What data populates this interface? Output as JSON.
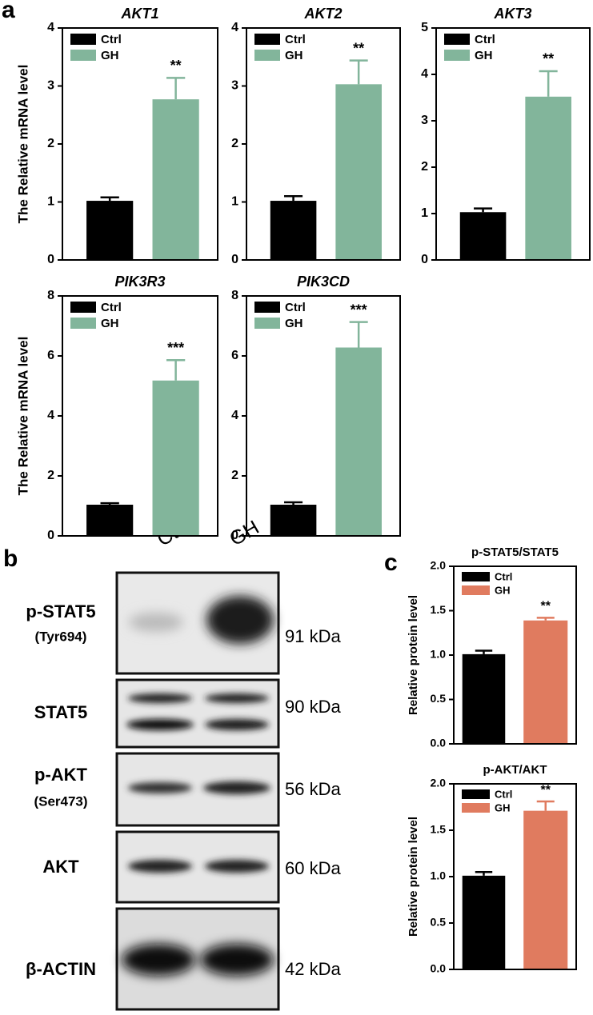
{
  "panels": [
    "a",
    "b",
    "c"
  ],
  "blot": {
    "columns": [
      "Ctrl",
      "GH"
    ],
    "rows": [
      {
        "label": "p-STAT5",
        "detail": "(Tyr694)",
        "size": "91 kDa"
      },
      {
        "label": "STAT5",
        "size": "90 kDa"
      },
      {
        "label": "p-AKT",
        "detail": "(Ser473)",
        "size": "56 kDa"
      },
      {
        "label": "AKT",
        "size": "60 kDa"
      },
      {
        "label": "β-ACTIN",
        "size": "42 kDa"
      }
    ]
  },
  "chart_data": [
    {
      "type": "bar",
      "title": "AKT1",
      "italic": true,
      "ylabel": "The Relative mRNA level",
      "series": [
        {
          "name": "Ctrl",
          "color": "#000000",
          "values": [
            1.02
          ],
          "errors": [
            0.06
          ]
        },
        {
          "name": "GH",
          "color": "#82b59b",
          "values": [
            2.77
          ],
          "errors": [
            0.37
          ],
          "significance": [
            "**"
          ]
        }
      ],
      "ylim": [
        0,
        4
      ],
      "yticks": [
        0,
        1,
        2,
        3,
        4
      ]
    },
    {
      "type": "bar",
      "title": "AKT2",
      "italic": true,
      "series": [
        {
          "name": "Ctrl",
          "color": "#000000",
          "values": [
            1.02
          ],
          "errors": [
            0.08
          ]
        },
        {
          "name": "GH",
          "color": "#82b59b",
          "values": [
            3.03
          ],
          "errors": [
            0.41
          ],
          "significance": [
            "**"
          ]
        }
      ],
      "ylim": [
        0,
        4
      ],
      "yticks": [
        0,
        1,
        2,
        3,
        4
      ]
    },
    {
      "type": "bar",
      "title": "AKT3",
      "italic": true,
      "series": [
        {
          "name": "Ctrl",
          "color": "#000000",
          "values": [
            1.03
          ],
          "errors": [
            0.08
          ]
        },
        {
          "name": "GH",
          "color": "#82b59b",
          "values": [
            3.52
          ],
          "errors": [
            0.55
          ],
          "significance": [
            "**"
          ]
        }
      ],
      "ylim": [
        0,
        5
      ],
      "yticks": [
        0,
        1,
        2,
        3,
        4,
        5
      ]
    },
    {
      "type": "bar",
      "title": "PIK3R3",
      "italic": true,
      "ylabel": "The Relative mRNA level",
      "series": [
        {
          "name": "Ctrl",
          "color": "#000000",
          "values": [
            1.04
          ],
          "errors": [
            0.05
          ]
        },
        {
          "name": "GH",
          "color": "#82b59b",
          "values": [
            5.18
          ],
          "errors": [
            0.68
          ],
          "significance": [
            "***"
          ]
        }
      ],
      "ylim": [
        0,
        8
      ],
      "yticks": [
        0,
        2,
        4,
        6,
        8
      ]
    },
    {
      "type": "bar",
      "title": "PIK3CD",
      "italic": true,
      "series": [
        {
          "name": "Ctrl",
          "color": "#000000",
          "values": [
            1.04
          ],
          "errors": [
            0.08
          ]
        },
        {
          "name": "GH",
          "color": "#82b59b",
          "values": [
            6.28
          ],
          "errors": [
            0.85
          ],
          "significance": [
            "***"
          ]
        }
      ],
      "ylim": [
        0,
        8
      ],
      "yticks": [
        0,
        2,
        4,
        6,
        8
      ]
    },
    {
      "type": "bar",
      "title": "p-STAT5/STAT5",
      "italic": false,
      "ylabel": "Relative protein level",
      "series": [
        {
          "name": "Ctrl",
          "color": "#000000",
          "values": [
            1.01
          ],
          "errors": [
            0.04
          ]
        },
        {
          "name": "GH",
          "color": "#e07b5f",
          "values": [
            1.39
          ],
          "errors": [
            0.03
          ],
          "significance": [
            "**"
          ]
        }
      ],
      "ylim": [
        0,
        2
      ],
      "yticks": [
        {
          "value": 0,
          "label": "0.0"
        },
        {
          "value": 0.5,
          "label": "0.5"
        },
        {
          "value": 1,
          "label": "1.0"
        },
        {
          "value": 1.5,
          "label": "1.5"
        },
        {
          "value": 2,
          "label": "2.0"
        }
      ]
    },
    {
      "type": "bar",
      "title": "p-AKT/AKT",
      "italic": false,
      "ylabel": "Relative protein level",
      "series": [
        {
          "name": "Ctrl",
          "color": "#000000",
          "values": [
            1.01
          ],
          "errors": [
            0.04
          ]
        },
        {
          "name": "GH",
          "color": "#e07b5f",
          "values": [
            1.71
          ],
          "errors": [
            0.1
          ],
          "significance": [
            "**"
          ]
        }
      ],
      "ylim": [
        0,
        2
      ],
      "yticks": [
        {
          "value": 0,
          "label": "0.0"
        },
        {
          "value": 0.5,
          "label": "0.5"
        },
        {
          "value": 1,
          "label": "1.0"
        },
        {
          "value": 1.5,
          "label": "1.5"
        },
        {
          "value": 2,
          "label": "2.0"
        }
      ]
    }
  ]
}
